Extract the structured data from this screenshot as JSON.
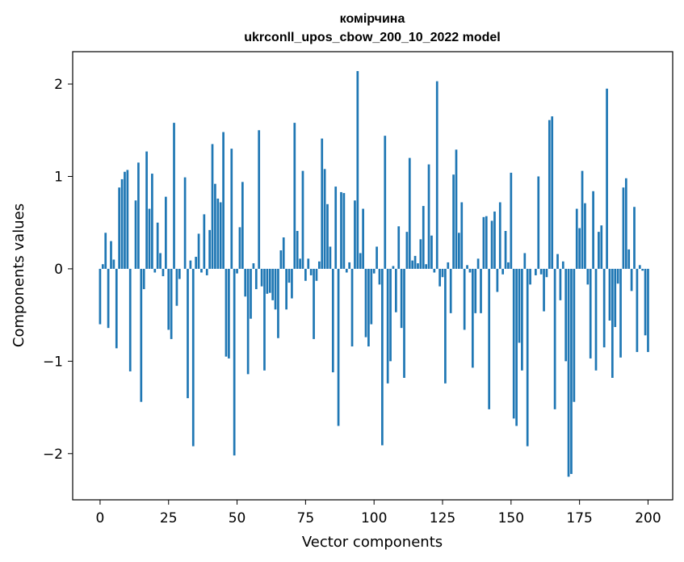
{
  "chart_data": {
    "type": "bar",
    "title": "комірчина",
    "subtitle": "ukrconll_upos_cbow_200_10_2022 model",
    "xlabel": "Vector components",
    "ylabel": "Components values",
    "xlim": [
      -10,
      209
    ],
    "ylim": [
      -2.5,
      2.35
    ],
    "xticks": [
      0,
      25,
      50,
      75,
      100,
      125,
      150,
      175,
      200
    ],
    "yticks": [
      -2,
      -1,
      0,
      1,
      2
    ],
    "xtick_labels": [
      "0",
      "25",
      "50",
      "75",
      "100",
      "125",
      "150",
      "175",
      "200"
    ],
    "ytick_labels": [
      "−2",
      "−1",
      "0",
      "1",
      "2"
    ],
    "grid": false,
    "bar_color": "#1f77b4",
    "series": [
      {
        "values": [
          -0.6,
          0.05,
          0.39,
          -0.64,
          0.3,
          0.1,
          -0.86,
          0.88,
          0.97,
          1.05,
          1.07,
          -1.11,
          0.0,
          0.74,
          1.15,
          -1.44,
          -0.22,
          1.27,
          0.65,
          1.03,
          -0.04,
          0.5,
          0.17,
          -0.08,
          0.78,
          -0.66,
          -0.76,
          1.58,
          -0.4,
          -0.11,
          0.0,
          0.99,
          -1.4,
          0.09,
          -1.92,
          0.13,
          0.38,
          -0.04,
          0.59,
          -0.07,
          0.42,
          1.35,
          0.92,
          0.76,
          0.72,
          1.48,
          -0.95,
          -0.97,
          1.3,
          -2.02,
          -0.05,
          0.45,
          0.94,
          -0.3,
          -1.14,
          -0.54,
          0.06,
          -0.22,
          1.5,
          -0.19,
          -1.1,
          -0.27,
          -0.26,
          -0.34,
          -0.44,
          -0.75,
          0.2,
          0.34,
          -0.44,
          -0.15,
          -0.32,
          1.58,
          0.41,
          0.11,
          1.06,
          -0.13,
          0.11,
          -0.07,
          -0.76,
          -0.13,
          0.08,
          1.41,
          1.08,
          0.7,
          0.24,
          -1.12,
          0.89,
          -1.7,
          0.83,
          0.82,
          -0.04,
          0.07,
          -0.84,
          0.74,
          2.14,
          0.17,
          0.65,
          -0.74,
          -0.84,
          -0.6,
          -0.05,
          0.24,
          -0.17,
          -1.91,
          1.44,
          -1.24,
          -1.0,
          0.03,
          -0.47,
          0.46,
          -0.64,
          -1.18,
          0.4,
          1.2,
          0.09,
          0.14,
          0.06,
          0.32,
          0.68,
          0.05,
          1.13,
          0.36,
          -0.04,
          2.03,
          -0.19,
          -0.09,
          -1.24,
          0.07,
          -0.48,
          1.02,
          1.29,
          0.39,
          0.72,
          -0.66,
          0.04,
          -0.04,
          -1.07,
          -0.48,
          0.11,
          -0.48,
          0.56,
          0.57,
          -1.52,
          0.52,
          0.62,
          -0.25,
          0.72,
          -0.06,
          0.41,
          0.07,
          1.04,
          -1.62,
          -1.7,
          -0.8,
          -1.1,
          0.17,
          -1.92,
          -0.17,
          0.0,
          -0.07,
          1.0,
          -0.06,
          -0.46,
          -0.09,
          1.61,
          1.65,
          -1.52,
          0.16,
          -0.34,
          0.08,
          -1.0,
          -2.25,
          -2.22,
          -1.44,
          0.65,
          0.44,
          1.06,
          0.71,
          -0.17,
          -0.97,
          0.84,
          -1.1,
          0.4,
          0.47,
          -0.85,
          1.95,
          -0.56,
          -1.18,
          -0.63,
          -0.16,
          -0.96,
          0.88,
          0.98,
          0.21,
          -0.24,
          0.67,
          -0.9,
          0.04,
          -0.02,
          -0.72,
          -0.9
        ]
      }
    ]
  }
}
